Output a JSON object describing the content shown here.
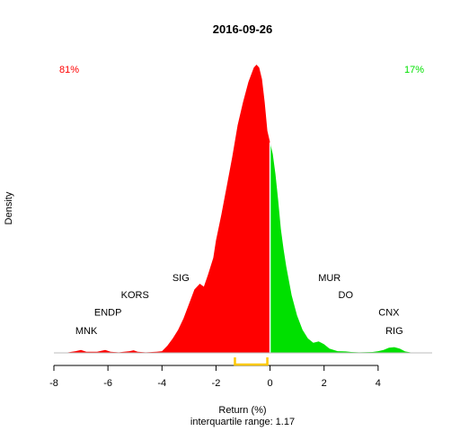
{
  "chart_data": {
    "type": "area",
    "title": "2016-09-26",
    "xlabel": "Return (%)",
    "ylabel": "Density",
    "subtitle": "interquartile range: 1.17",
    "xlim": [
      -8,
      6
    ],
    "x_ticks": [
      -8,
      -6,
      -4,
      -2,
      0,
      2,
      4
    ],
    "ylim": [
      0,
      1.0
    ],
    "split_at": 0,
    "colors": {
      "negative": "#ff0000",
      "positive": "#00e000",
      "iqr": "#ffc800",
      "axis": "#000000",
      "baseline": "#bebebe"
    },
    "pct_negative": "81%",
    "pct_positive": "17%",
    "iqr_range": [
      -1.3,
      -0.1
    ],
    "density": {
      "x": [
        -7.6,
        -7.2,
        -7.0,
        -6.8,
        -6.4,
        -6.1,
        -5.9,
        -5.6,
        -5.2,
        -5.05,
        -4.9,
        -4.6,
        -4.2,
        -4.0,
        -3.8,
        -3.6,
        -3.4,
        -3.2,
        -3.0,
        -2.8,
        -2.6,
        -2.45,
        -2.3,
        -2.1,
        -2.0,
        -1.8,
        -1.6,
        -1.4,
        -1.2,
        -1.0,
        -0.8,
        -0.6,
        -0.5,
        -0.4,
        -0.3,
        -0.2,
        -0.1,
        0.0,
        0.1,
        0.2,
        0.3,
        0.4,
        0.5,
        0.6,
        0.8,
        1.0,
        1.2,
        1.4,
        1.6,
        1.8,
        2.0,
        2.2,
        2.5,
        2.8,
        3.0,
        3.3,
        3.8,
        4.0,
        4.2,
        4.4,
        4.6,
        4.8,
        5.0,
        5.3
      ],
      "y": [
        0.0,
        0.006,
        0.01,
        0.004,
        0.004,
        0.01,
        0.004,
        0.002,
        0.006,
        0.009,
        0.004,
        0.002,
        0.004,
        0.006,
        0.025,
        0.05,
        0.08,
        0.12,
        0.17,
        0.22,
        0.24,
        0.23,
        0.27,
        0.33,
        0.39,
        0.48,
        0.58,
        0.68,
        0.79,
        0.87,
        0.94,
        0.99,
        1.0,
        0.99,
        0.95,
        0.87,
        0.77,
        0.73,
        0.69,
        0.62,
        0.53,
        0.43,
        0.36,
        0.3,
        0.2,
        0.13,
        0.08,
        0.05,
        0.035,
        0.04,
        0.03,
        0.015,
        0.006,
        0.005,
        0.003,
        0.002,
        0.003,
        0.006,
        0.01,
        0.018,
        0.02,
        0.015,
        0.005,
        0.0
      ]
    },
    "annotations": [
      {
        "label": "MNK",
        "x": -6.8,
        "y": 0.065
      },
      {
        "label": "ENDP",
        "x": -6.0,
        "y": 0.13
      },
      {
        "label": "KORS",
        "x": -5.0,
        "y": 0.19
      },
      {
        "label": "SIG",
        "x": -3.3,
        "y": 0.25
      },
      {
        "label": "MUR",
        "x": 2.2,
        "y": 0.25
      },
      {
        "label": "DO",
        "x": 2.8,
        "y": 0.19
      },
      {
        "label": "CNX",
        "x": 4.4,
        "y": 0.13
      },
      {
        "label": "RIG",
        "x": 4.6,
        "y": 0.065
      }
    ]
  }
}
